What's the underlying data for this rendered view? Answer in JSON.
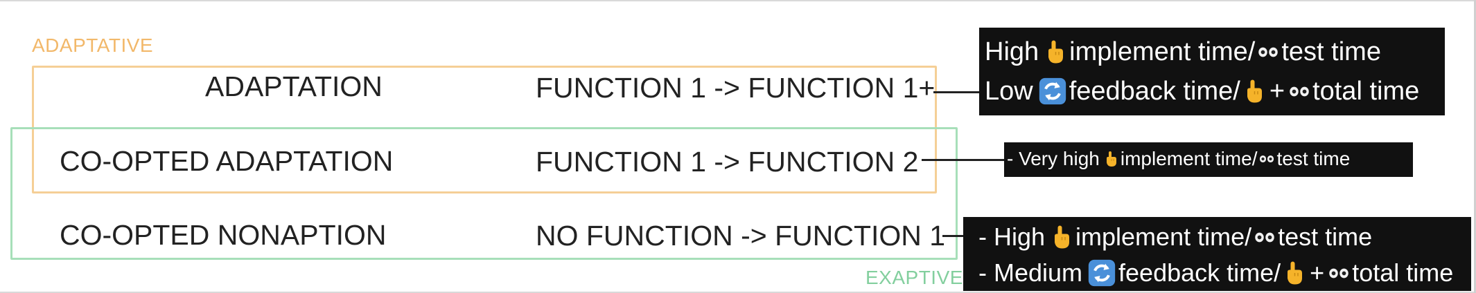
{
  "colors": {
    "adaptative": "#f2b86a",
    "exaptive": "#83cf9e",
    "text": "#222222",
    "note_bg": "#111111",
    "hand": "#f5b32a",
    "cycle_bg": "#4a90d9"
  },
  "labels": {
    "adaptative": "ADAPTATIVE",
    "exaptive": "EXAPTIVE"
  },
  "rows": [
    {
      "name": "ADAPTATION",
      "function": "FUNCTION 1 -> FUNCTION 1+"
    },
    {
      "name": "CO-OPTED ADAPTATION",
      "function": "FUNCTION 1 -> FUNCTION 2"
    },
    {
      "name": "CO-OPTED NONAPTION",
      "function": "NO FUNCTION -> FUNCTION 1"
    }
  ],
  "notes": [
    {
      "lines": [
        {
          "prefix": "High",
          "mid": "implement time/",
          "suffix": "test time"
        },
        {
          "prefix": "Low",
          "mid": "feedback time/",
          "plus": "+",
          "suffix": "total time"
        }
      ]
    },
    {
      "lines": [
        {
          "prefix": "- Very high",
          "mid": "implement time/",
          "suffix": "test time"
        }
      ]
    },
    {
      "lines": [
        {
          "prefix": "- High",
          "mid": "implement time/",
          "suffix": "test time"
        },
        {
          "prefix": "- Medium",
          "mid": "feedback time/",
          "plus": "+",
          "suffix": "total time"
        }
      ]
    }
  ],
  "icons": {
    "hand": "pointing-hand-icon",
    "eyes": "eyes-icon",
    "cycle": "arrows-cycle-icon"
  }
}
